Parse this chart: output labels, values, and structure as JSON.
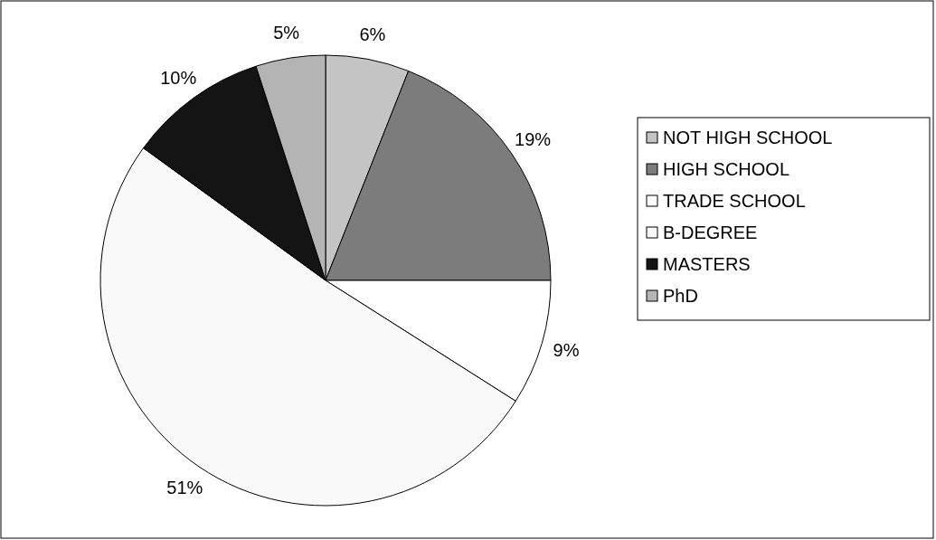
{
  "chart_data": {
    "type": "pie",
    "categories": [
      "NOT HIGH SCHOOL",
      "HIGH SCHOOL",
      "TRADE SCHOOL",
      "B-DEGREE",
      "MASTERS",
      "PhD"
    ],
    "values": [
      6,
      19,
      9,
      51,
      10,
      5
    ],
    "value_labels": [
      "6%",
      "19%",
      "9%",
      "51%",
      "10%",
      "5%"
    ],
    "colors": [
      "#c4c4c4",
      "#7c7c7c",
      "#ffffff",
      "#f9f9f9",
      "#141414",
      "#b4b4b4"
    ],
    "legend": "right"
  }
}
